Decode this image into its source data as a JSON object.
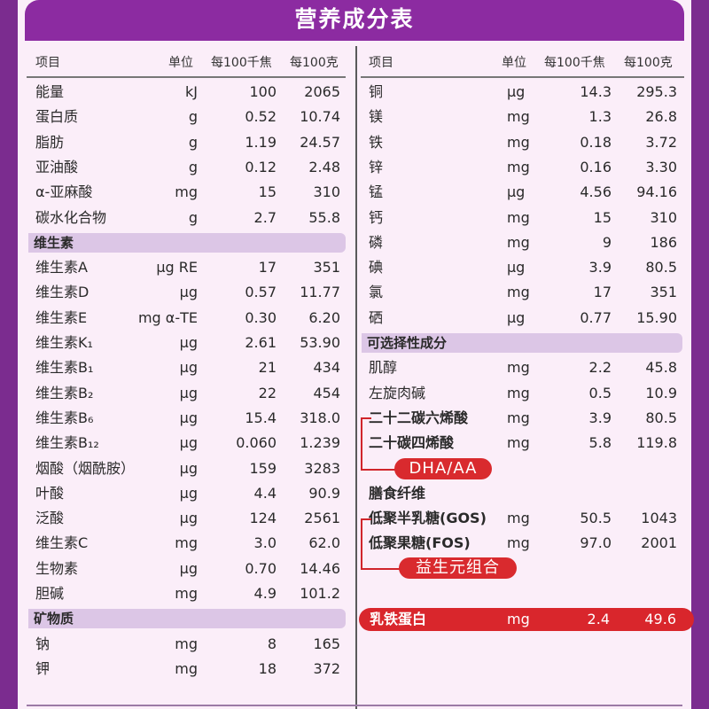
{
  "title": "营养成分表",
  "headers": {
    "item": "项目",
    "unit": "单位",
    "per_kj": "每100千焦",
    "per_g": "每100克"
  },
  "left_rows": [
    {
      "type": "row",
      "name": "能量",
      "unit": "kJ",
      "per_kj": "100",
      "per_g": "2065"
    },
    {
      "type": "row",
      "name": "蛋白质",
      "unit": "g",
      "per_kj": "0.52",
      "per_g": "10.74"
    },
    {
      "type": "row",
      "name": "脂肪",
      "unit": "g",
      "per_kj": "1.19",
      "per_g": "24.57"
    },
    {
      "type": "row",
      "name": "亚油酸",
      "unit": "g",
      "per_kj": "0.12",
      "per_g": "2.48"
    },
    {
      "type": "row",
      "name": "α-亚麻酸",
      "unit": "mg",
      "per_kj": "15",
      "per_g": "310"
    },
    {
      "type": "row",
      "name": "碳水化合物",
      "unit": "g",
      "per_kj": "2.7",
      "per_g": "55.8"
    },
    {
      "type": "section",
      "name": "维生素"
    },
    {
      "type": "row",
      "name": "维生素A",
      "unit": "μg RE",
      "per_kj": "17",
      "per_g": "351"
    },
    {
      "type": "row",
      "name": "维生素D",
      "unit": "μg",
      "per_kj": "0.57",
      "per_g": "11.77"
    },
    {
      "type": "row",
      "name": "维生素E",
      "unit": "mg α-TE",
      "per_kj": "0.30",
      "per_g": "6.20"
    },
    {
      "type": "row",
      "name": "维生素K₁",
      "unit": "μg",
      "per_kj": "2.61",
      "per_g": "53.90"
    },
    {
      "type": "row",
      "name": "维生素B₁",
      "unit": "μg",
      "per_kj": "21",
      "per_g": "434"
    },
    {
      "type": "row",
      "name": "维生素B₂",
      "unit": "μg",
      "per_kj": "22",
      "per_g": "454"
    },
    {
      "type": "row",
      "name": "维生素B₆",
      "unit": "μg",
      "per_kj": "15.4",
      "per_g": "318.0"
    },
    {
      "type": "row",
      "name": "维生素B₁₂",
      "unit": "μg",
      "per_kj": "0.060",
      "per_g": "1.239"
    },
    {
      "type": "row",
      "name": "烟酸（烟酰胺）",
      "unit": "μg",
      "per_kj": "159",
      "per_g": "3283"
    },
    {
      "type": "row",
      "name": "叶酸",
      "unit": "μg",
      "per_kj": "4.4",
      "per_g": "90.9"
    },
    {
      "type": "row",
      "name": "泛酸",
      "unit": "μg",
      "per_kj": "124",
      "per_g": "2561"
    },
    {
      "type": "row",
      "name": "维生素C",
      "unit": "mg",
      "per_kj": "3.0",
      "per_g": "62.0"
    },
    {
      "type": "row",
      "name": "生物素",
      "unit": "μg",
      "per_kj": "0.70",
      "per_g": "14.46"
    },
    {
      "type": "row",
      "name": "胆碱",
      "unit": "mg",
      "per_kj": "4.9",
      "per_g": "101.2"
    },
    {
      "type": "section",
      "name": "矿物质"
    },
    {
      "type": "row",
      "name": "钠",
      "unit": "mg",
      "per_kj": "8",
      "per_g": "165"
    },
    {
      "type": "row",
      "name": "钾",
      "unit": "mg",
      "per_kj": "18",
      "per_g": "372"
    }
  ],
  "right_rows": [
    {
      "type": "row",
      "name": "铜",
      "unit": "μg",
      "per_kj": "14.3",
      "per_g": "295.3"
    },
    {
      "type": "row",
      "name": "镁",
      "unit": "mg",
      "per_kj": "1.3",
      "per_g": "26.8"
    },
    {
      "type": "row",
      "name": "铁",
      "unit": "mg",
      "per_kj": "0.18",
      "per_g": "3.72"
    },
    {
      "type": "row",
      "name": "锌",
      "unit": "mg",
      "per_kj": "0.16",
      "per_g": "3.30"
    },
    {
      "type": "row",
      "name": "锰",
      "unit": "μg",
      "per_kj": "4.56",
      "per_g": "94.16"
    },
    {
      "type": "row",
      "name": "钙",
      "unit": "mg",
      "per_kj": "15",
      "per_g": "310"
    },
    {
      "type": "row",
      "name": "磷",
      "unit": "mg",
      "per_kj": "9",
      "per_g": "186"
    },
    {
      "type": "row",
      "name": "碘",
      "unit": "μg",
      "per_kj": "3.9",
      "per_g": "80.5"
    },
    {
      "type": "row",
      "name": "氯",
      "unit": "mg",
      "per_kj": "17",
      "per_g": "351"
    },
    {
      "type": "row",
      "name": "硒",
      "unit": "μg",
      "per_kj": "0.77",
      "per_g": "15.90"
    },
    {
      "type": "section",
      "name": "可选择性成分"
    },
    {
      "type": "row",
      "name": "肌醇",
      "unit": "mg",
      "per_kj": "2.2",
      "per_g": "45.8"
    },
    {
      "type": "row",
      "name": "左旋肉碱",
      "unit": "mg",
      "per_kj": "0.5",
      "per_g": "10.9"
    },
    {
      "type": "row",
      "name": "二十二碳六烯酸",
      "unit": "mg",
      "per_kj": "3.9",
      "per_g": "80.5",
      "bold": true
    },
    {
      "type": "row",
      "name": "二十碳四烯酸",
      "unit": "mg",
      "per_kj": "5.8",
      "per_g": "119.8",
      "bold": true
    },
    {
      "type": "blank"
    },
    {
      "type": "row",
      "name": "膳食纤维",
      "unit": "",
      "per_kj": "",
      "per_g": "",
      "bold": true
    },
    {
      "type": "row",
      "name": "低聚半乳糖(GOS)",
      "unit": "mg",
      "per_kj": "50.5",
      "per_g": "1043",
      "bold": true
    },
    {
      "type": "row",
      "name": "低聚果糖(FOS)",
      "unit": "mg",
      "per_kj": "97.0",
      "per_g": "2001",
      "bold": true
    }
  ],
  "badges": {
    "dha_aa": "DHA/AA",
    "prebiotic": "益生元组合"
  },
  "lactoferrin": {
    "name": "乳铁蛋白",
    "unit": "mg",
    "per_kj": "2.4",
    "per_g": "49.6"
  },
  "colors": {
    "frame": "#7b2c8f",
    "title_bar": "#8c2ba1",
    "section": "#dcc6e6",
    "highlight": "#d9262c"
  }
}
